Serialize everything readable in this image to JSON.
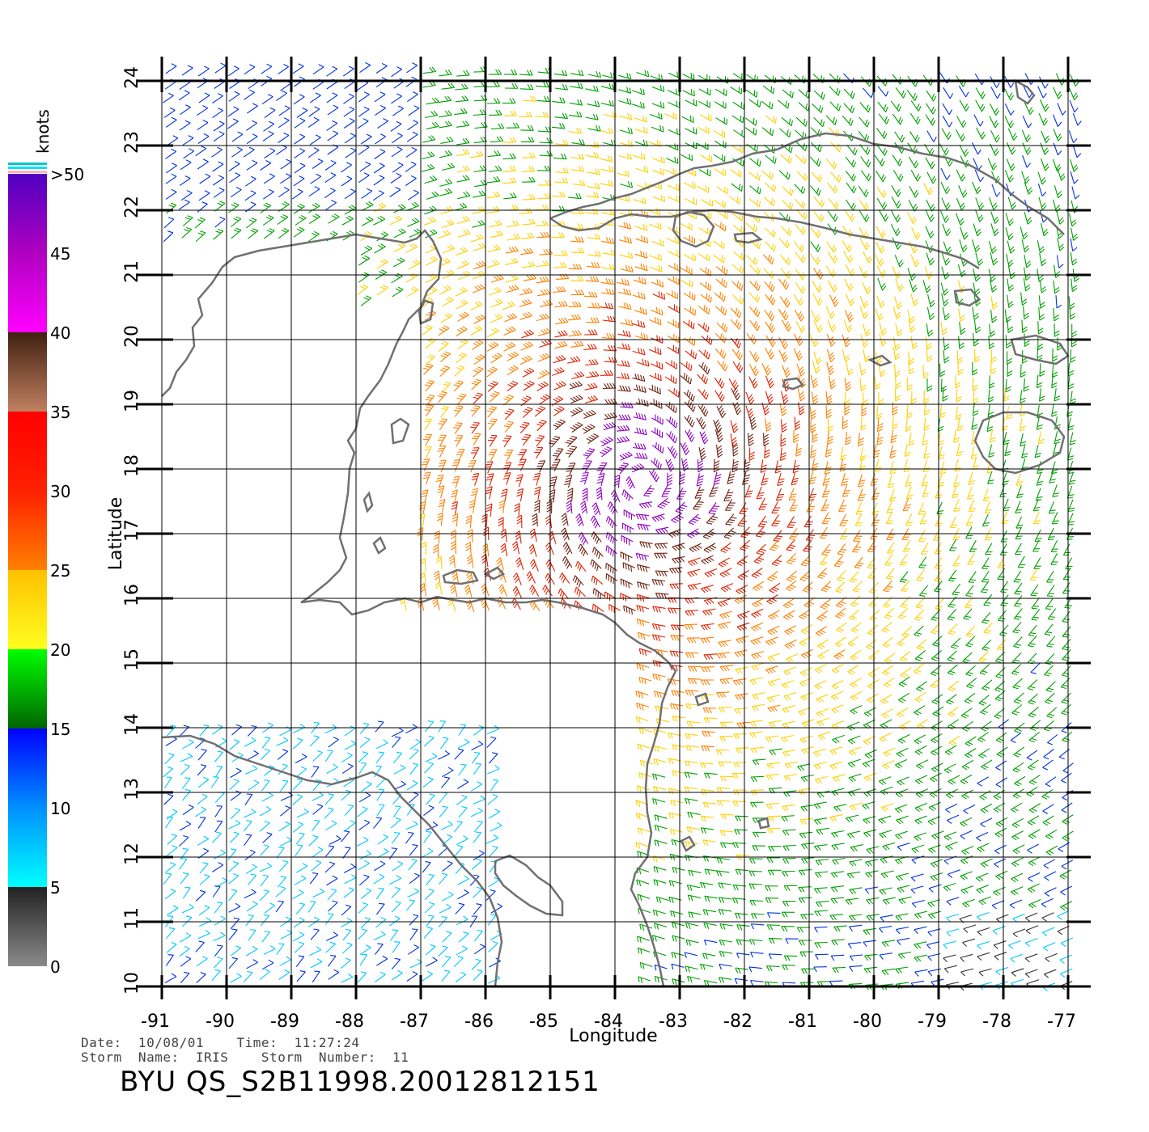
{
  "map": {
    "x_axis_label": "Longitude",
    "y_axis_label": "Latitude",
    "x_ticks": [
      "-91",
      "-90",
      "-89",
      "-88",
      "-87",
      "-86",
      "-85",
      "-84",
      "-83",
      "-82",
      "-81",
      "-80",
      "-79",
      "-78",
      "-77"
    ],
    "y_ticks": [
      "10",
      "11",
      "12",
      "13",
      "14",
      "15",
      "16",
      "17",
      "18",
      "19",
      "20",
      "21",
      "22",
      "23",
      "24"
    ],
    "lon_range": [
      -91,
      -76.6
    ],
    "lat_range": [
      10,
      24
    ],
    "storm_center": {
      "lon": -83.6,
      "lat": 17.8
    }
  },
  "colorbar": {
    "title": "knots",
    "labels": [
      "0",
      "5",
      "10",
      "15",
      "20",
      "25",
      "30",
      "35",
      "40",
      "45",
      ">50"
    ],
    "bands": [
      {
        "from": 0,
        "to": 5,
        "colors": [
          "#8a8a8a",
          "#222222"
        ]
      },
      {
        "from": 5,
        "to": 10,
        "colors": [
          "#00ffff",
          "#0090ff"
        ]
      },
      {
        "from": 10,
        "to": 15,
        "colors": [
          "#0090ff",
          "#0000ff"
        ]
      },
      {
        "from": 15,
        "to": 20,
        "colors": [
          "#006400",
          "#00ff00"
        ]
      },
      {
        "from": 20,
        "to": 25,
        "colors": [
          "#ffff20",
          "#ffc000"
        ]
      },
      {
        "from": 25,
        "to": 30,
        "colors": [
          "#ff8000",
          "#ff2000"
        ]
      },
      {
        "from": 30,
        "to": 35,
        "colors": [
          "#ff2000",
          "#ff0000"
        ]
      },
      {
        "from": 35,
        "to": 40,
        "colors": [
          "#c08060",
          "#402010"
        ]
      },
      {
        "from": 40,
        "to": 45,
        "colors": [
          "#ff00ff",
          "#b000c0"
        ]
      },
      {
        "from": 45,
        "to": 50,
        "colors": [
          "#b000c0",
          "#5000c0"
        ]
      }
    ]
  },
  "footer": {
    "date_line": "Date:  10/08/01    Time:  11:27:24",
    "storm_line": "Storm  Name:  IRIS    Storm  Number:  11",
    "title": "BYU  QS_S2B11998.20012812151"
  },
  "colors": {
    "coastline": "#707070",
    "grid": "#000000"
  }
}
